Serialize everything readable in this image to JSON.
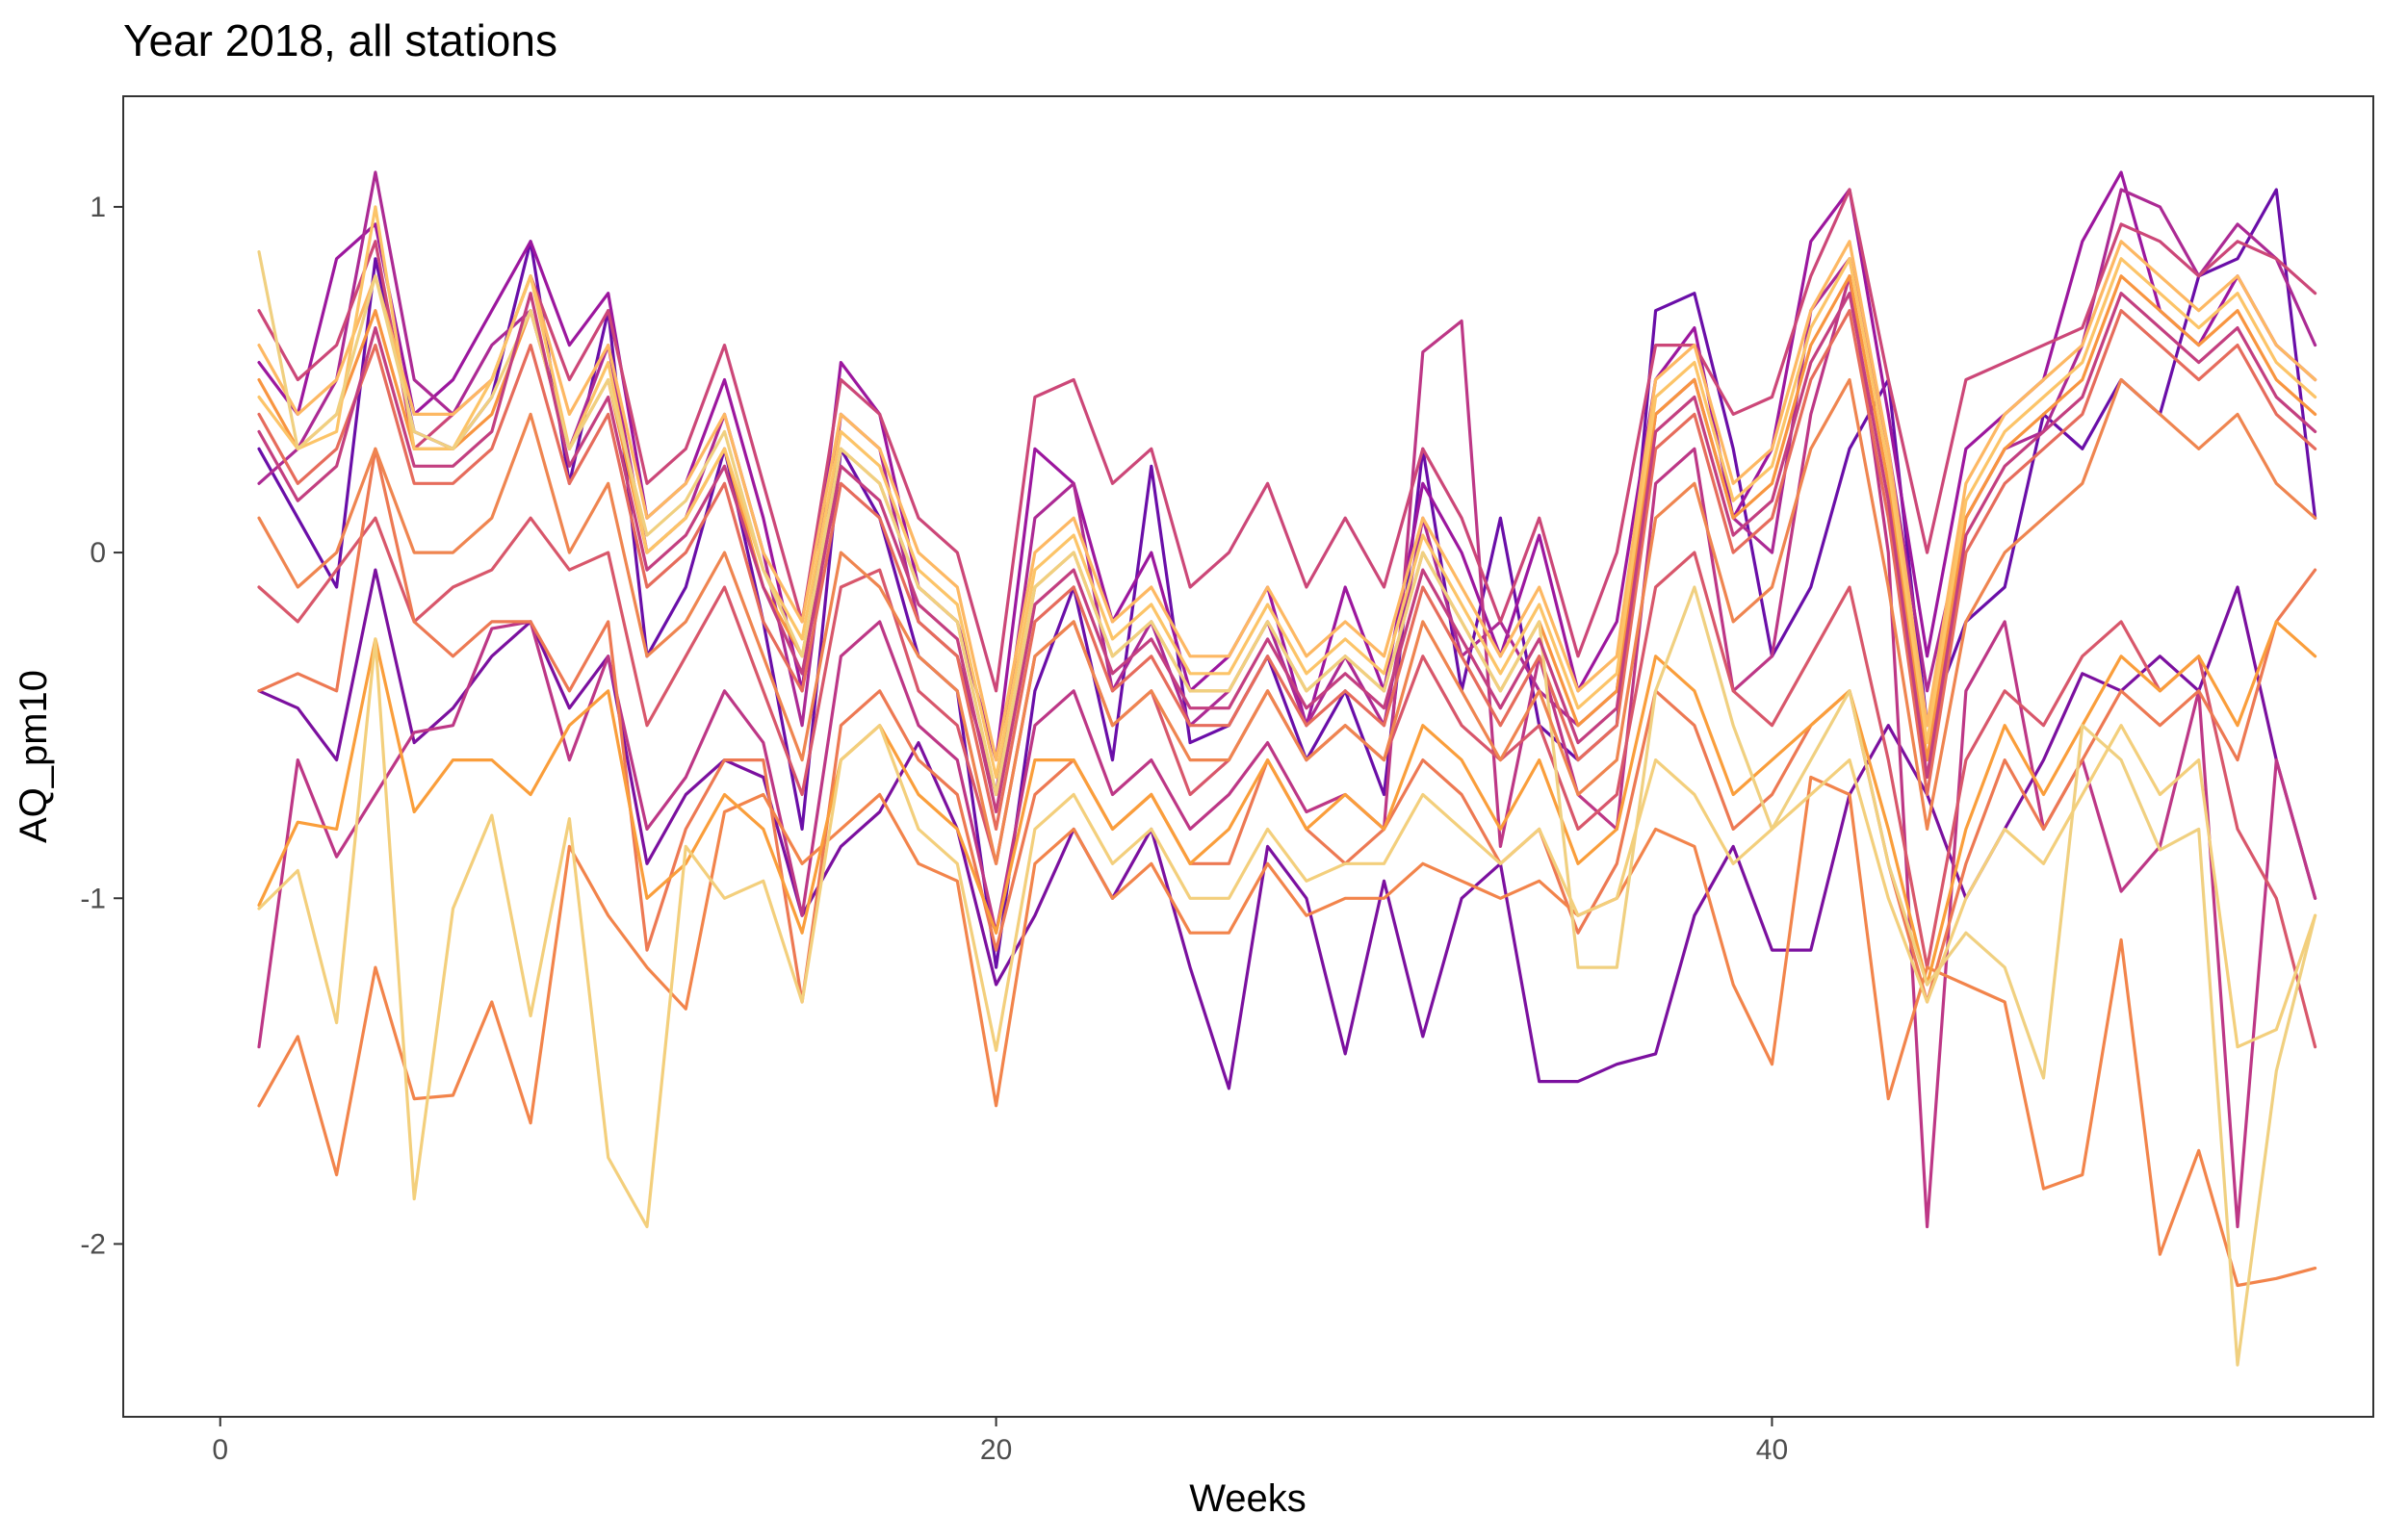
{
  "chart_data": {
    "type": "line",
    "title": "Year 2018, all stations",
    "xlabel": "Weeks",
    "ylabel": "AQ_pm10",
    "xlim": [
      -2.5,
      55.5
    ],
    "ylim": [
      -2.5,
      1.32
    ],
    "x_ticks": [
      0,
      20,
      40
    ],
    "x_tick_labels": [
      "0",
      "20",
      "40"
    ],
    "y_ticks": [
      -2,
      -1,
      0,
      1
    ],
    "y_tick_labels": [
      "-2",
      "-1",
      "0",
      "1"
    ],
    "grid": false,
    "legend": "none",
    "palette": [
      "#6a0ea8",
      "#9c179e",
      "#bd3786",
      "#d8576b",
      "#ed7953",
      "#f89540",
      "#fdb863",
      "#f7d070"
    ],
    "x": [
      1,
      2,
      3,
      4,
      5,
      6,
      7,
      8,
      9,
      10,
      11,
      12,
      13,
      14,
      15,
      16,
      17,
      18,
      19,
      20,
      21,
      22,
      23,
      24,
      25,
      26,
      27,
      28,
      29,
      30,
      31,
      32,
      33,
      34,
      35,
      36,
      37,
      38,
      39,
      40,
      41,
      42,
      43,
      44,
      45,
      46,
      47,
      48,
      49,
      50,
      51,
      52,
      53,
      54
    ],
    "series": [
      {
        "color": "#6a0ea8",
        "values": [
          0.3,
          0.1,
          -0.1,
          0.85,
          0.35,
          0.3,
          0.45,
          0.9,
          0.2,
          0.7,
          -0.3,
          -0.1,
          0.3,
          -0.2,
          -0.8,
          0.3,
          0.1,
          -0.3,
          -0.4,
          -1.2,
          -0.4,
          -0.1,
          -0.6,
          0.25,
          -0.55,
          -0.5,
          -0.3,
          -0.6,
          -0.4,
          -0.7,
          0.3,
          -0.4,
          0.1,
          -0.5,
          -0.6,
          -0.5,
          0.7,
          0.75,
          0.3,
          -0.3,
          -0.1,
          0.3,
          0.5,
          -0.5,
          -0.2,
          -0.1,
          0.4,
          0.3,
          0.5,
          0.4,
          0.8,
          0.85,
          1.05,
          0.1
        ]
      },
      {
        "color": "#7b109f",
        "values": [
          -0.4,
          -0.45,
          -0.6,
          -0.05,
          -0.55,
          -0.45,
          -0.3,
          -0.2,
          -0.45,
          -0.3,
          -0.9,
          -0.7,
          -0.6,
          -0.65,
          -1.05,
          -0.85,
          -0.75,
          -0.55,
          -0.8,
          -1.25,
          -1.05,
          -0.8,
          -1.0,
          -0.8,
          -1.2,
          -1.55,
          -0.85,
          -1.0,
          -1.45,
          -0.95,
          -1.4,
          -1.0,
          -0.9,
          -1.53,
          -1.53,
          -1.48,
          -1.45,
          -1.05,
          -0.85,
          -1.15,
          -1.15,
          -0.7,
          -0.5,
          -0.7,
          -1.0,
          -0.8,
          -0.6,
          -0.35,
          -0.4,
          -0.3,
          -0.4,
          -0.1,
          -0.6,
          -1.0
        ]
      },
      {
        "color": "#9c179e",
        "values": [
          0.55,
          0.4,
          0.85,
          0.95,
          0.4,
          0.5,
          0.7,
          0.9,
          0.6,
          0.75,
          0.1,
          0.2,
          0.5,
          0.1,
          -0.4,
          0.55,
          0.4,
          -0.1,
          -0.2,
          -0.6,
          0.3,
          0.2,
          -0.2,
          0.0,
          -0.4,
          -0.3,
          -0.1,
          -0.5,
          -0.1,
          -0.4,
          0.2,
          0.0,
          -0.3,
          0.05,
          -0.4,
          -0.2,
          0.5,
          0.65,
          0.1,
          0.3,
          0.9,
          1.05,
          0.4,
          -0.3,
          0.3,
          0.4,
          0.5,
          0.9,
          1.1,
          0.7,
          0.6,
          0.8,
          0.6,
          0.5
        ]
      },
      {
        "color": "#ac2a94",
        "values": [
          0.2,
          0.3,
          0.5,
          1.1,
          0.5,
          0.4,
          0.6,
          0.7,
          0.3,
          0.6,
          0.0,
          0.1,
          0.4,
          0.0,
          -0.5,
          0.4,
          0.3,
          -0.2,
          -0.3,
          -0.7,
          0.1,
          0.2,
          -0.4,
          -0.2,
          -0.5,
          -0.4,
          -0.2,
          -0.5,
          -0.3,
          -0.5,
          0.1,
          -0.3,
          -0.2,
          -0.4,
          -0.5,
          -0.4,
          0.4,
          0.5,
          0.1,
          0.0,
          0.7,
          0.85,
          0.3,
          -0.4,
          0.1,
          0.3,
          0.35,
          0.6,
          1.05,
          1.0,
          0.8,
          0.95,
          0.85,
          0.6
        ]
      },
      {
        "color": "#bd3786",
        "values": [
          -1.43,
          -0.6,
          -0.88,
          -0.7,
          -0.52,
          -0.5,
          -0.22,
          -0.2,
          -0.6,
          -0.3,
          -0.8,
          -0.65,
          -0.4,
          -0.55,
          -1.05,
          -0.3,
          -0.2,
          -0.5,
          -0.6,
          -1.1,
          -0.5,
          -0.4,
          -0.7,
          -0.6,
          -0.8,
          -0.7,
          -0.55,
          -0.75,
          -0.7,
          -0.8,
          0.58,
          0.67,
          -0.85,
          -0.3,
          -0.7,
          -0.8,
          0.2,
          0.3,
          -0.4,
          -0.3,
          0.4,
          0.8,
          0.0,
          -1.95,
          -0.4,
          -0.2,
          -0.8,
          -0.6,
          -0.98,
          -0.85,
          -0.4,
          -1.95,
          -0.6,
          -1.0
        ]
      },
      {
        "color": "#cc4778",
        "values": [
          0.7,
          0.5,
          0.6,
          0.9,
          0.3,
          0.4,
          0.5,
          0.8,
          0.5,
          0.7,
          0.2,
          0.3,
          0.6,
          0.2,
          -0.2,
          0.5,
          0.4,
          0.1,
          0.0,
          -0.4,
          0.45,
          0.5,
          0.2,
          0.3,
          -0.1,
          0.0,
          0.2,
          -0.1,
          0.1,
          -0.1,
          0.3,
          0.1,
          -0.2,
          0.1,
          -0.3,
          0.0,
          0.6,
          0.6,
          0.4,
          0.45,
          0.8,
          1.05,
          0.5,
          0.0,
          0.5,
          0.55,
          0.6,
          0.65,
          0.95,
          0.9,
          0.8,
          0.9,
          0.85,
          0.75
        ]
      },
      {
        "color": "#d8576b",
        "values": [
          -0.1,
          -0.2,
          -0.05,
          0.1,
          -0.2,
          -0.1,
          -0.05,
          0.1,
          -0.05,
          0.0,
          -0.5,
          -0.3,
          -0.1,
          -0.4,
          -0.7,
          -0.1,
          -0.05,
          -0.4,
          -0.5,
          -0.9,
          -0.3,
          -0.2,
          -0.5,
          -0.4,
          -0.7,
          -0.6,
          -0.4,
          -0.6,
          -0.5,
          -0.6,
          -0.3,
          -0.5,
          -0.6,
          -0.5,
          -0.8,
          -0.7,
          -0.1,
          0.0,
          -0.4,
          -0.5,
          -0.3,
          -0.1,
          -0.6,
          -1.2,
          -0.6,
          -0.4,
          -0.5,
          -0.3,
          -0.2,
          -0.4,
          -0.3,
          -0.8,
          -1.0,
          -1.43
        ]
      },
      {
        "color": "#e66c5c",
        "values": [
          0.4,
          0.2,
          0.3,
          0.6,
          0.2,
          0.2,
          0.3,
          0.6,
          0.2,
          0.4,
          -0.1,
          0.0,
          0.2,
          -0.2,
          -0.4,
          0.2,
          0.1,
          -0.2,
          -0.3,
          -0.8,
          -0.2,
          -0.1,
          -0.4,
          -0.3,
          -0.5,
          -0.5,
          -0.3,
          -0.5,
          -0.4,
          -0.5,
          -0.1,
          -0.3,
          -0.5,
          -0.3,
          -0.6,
          -0.5,
          0.3,
          0.4,
          0.0,
          0.1,
          0.5,
          0.7,
          0.1,
          -0.7,
          0.0,
          0.2,
          0.3,
          0.4,
          0.7,
          0.6,
          0.5,
          0.6,
          0.4,
          0.3
        ]
      },
      {
        "color": "#ed7953",
        "values": [
          -0.4,
          -0.35,
          -0.4,
          0.3,
          -0.2,
          -0.3,
          -0.2,
          -0.2,
          -0.4,
          -0.2,
          -1.15,
          -0.8,
          -0.6,
          -0.6,
          -1.3,
          -0.5,
          -0.4,
          -0.6,
          -0.7,
          -1.15,
          -0.7,
          -0.6,
          -0.8,
          -0.7,
          -0.9,
          -0.9,
          -0.6,
          -0.8,
          -0.9,
          -0.8,
          -0.6,
          -0.7,
          -0.9,
          -0.8,
          -1.1,
          -0.9,
          -0.4,
          -0.5,
          -0.8,
          -0.7,
          -0.5,
          -0.4,
          -0.9,
          -1.3,
          -0.9,
          -0.6,
          -0.8,
          -0.6,
          -0.4,
          -0.5,
          -0.4,
          -0.6,
          -0.2,
          -0.05
        ]
      },
      {
        "color": "#f2844b",
        "values": [
          -1.6,
          -1.4,
          -1.8,
          -1.2,
          -1.58,
          -1.57,
          -1.3,
          -1.65,
          -0.85,
          -1.05,
          -1.2,
          -1.32,
          -0.75,
          -0.7,
          -0.9,
          -0.8,
          -0.7,
          -0.9,
          -0.95,
          -1.6,
          -0.9,
          -0.8,
          -1.0,
          -0.9,
          -1.1,
          -1.1,
          -0.9,
          -1.05,
          -1.0,
          -1.0,
          -0.9,
          -0.95,
          -1.0,
          -0.95,
          -1.05,
          -1.0,
          -0.8,
          -0.85,
          -1.25,
          -1.48,
          -0.65,
          -0.7,
          -1.58,
          -1.2,
          -1.25,
          -1.3,
          -1.84,
          -1.8,
          -1.12,
          -2.03,
          -1.73,
          -2.12,
          -2.1,
          -2.07
        ]
      },
      {
        "color": "#f89540",
        "values": [
          0.5,
          0.3,
          0.4,
          0.7,
          0.3,
          0.3,
          0.4,
          0.7,
          0.3,
          0.5,
          0.0,
          0.1,
          0.3,
          -0.1,
          -0.3,
          0.3,
          0.2,
          -0.1,
          -0.2,
          -0.7,
          -0.1,
          0.0,
          -0.3,
          -0.2,
          -0.4,
          -0.4,
          -0.2,
          -0.4,
          -0.3,
          -0.4,
          0.0,
          -0.2,
          -0.4,
          -0.2,
          -0.5,
          -0.4,
          0.4,
          0.5,
          0.1,
          0.2,
          0.6,
          0.8,
          0.2,
          -0.6,
          0.1,
          0.3,
          0.4,
          0.5,
          0.8,
          0.7,
          0.6,
          0.7,
          0.5,
          0.4
        ]
      },
      {
        "color": "#fa9e3b",
        "values": [
          -1.02,
          -0.78,
          -0.8,
          -0.25,
          -0.75,
          -0.6,
          -0.6,
          -0.7,
          -0.5,
          -0.4,
          -1.0,
          -0.9,
          -0.7,
          -0.8,
          -1.1,
          -0.6,
          -0.5,
          -0.7,
          -0.8,
          -1.1,
          -0.6,
          -0.6,
          -0.8,
          -0.7,
          -0.9,
          -0.8,
          -0.6,
          -0.8,
          -0.7,
          -0.8,
          -0.5,
          -0.6,
          -0.8,
          -0.6,
          -0.9,
          -0.8,
          -0.3,
          -0.4,
          -0.7,
          -0.6,
          -0.5,
          -0.4,
          -0.8,
          -1.25,
          -0.8,
          -0.5,
          -0.7,
          -0.5,
          -0.3,
          -0.4,
          -0.3,
          -0.5,
          -0.2,
          -0.3
        ]
      },
      {
        "color": "#fdb863",
        "values": [
          0.6,
          0.4,
          0.5,
          0.8,
          0.4,
          0.4,
          0.5,
          0.8,
          0.4,
          0.6,
          0.1,
          0.2,
          0.4,
          0.0,
          -0.2,
          0.4,
          0.3,
          0.0,
          -0.1,
          -0.6,
          0.0,
          0.1,
          -0.2,
          -0.1,
          -0.3,
          -0.3,
          -0.1,
          -0.3,
          -0.2,
          -0.3,
          0.1,
          -0.1,
          -0.3,
          -0.1,
          -0.4,
          -0.3,
          0.5,
          0.6,
          0.2,
          0.3,
          0.7,
          0.9,
          0.3,
          -0.5,
          0.2,
          0.4,
          0.5,
          0.6,
          0.9,
          0.8,
          0.7,
          0.8,
          0.6,
          0.5
        ]
      },
      {
        "color": "#fcc468",
        "values": [
          0.45,
          0.3,
          0.35,
          1.0,
          0.3,
          0.3,
          0.5,
          0.8,
          0.3,
          0.55,
          0.0,
          0.1,
          0.3,
          -0.05,
          -0.25,
          0.35,
          0.25,
          -0.05,
          -0.15,
          -0.65,
          -0.05,
          0.05,
          -0.25,
          -0.15,
          -0.35,
          -0.35,
          -0.15,
          -0.35,
          -0.25,
          -0.35,
          0.05,
          -0.15,
          -0.35,
          -0.15,
          -0.45,
          -0.35,
          0.45,
          0.55,
          0.15,
          0.25,
          0.65,
          0.85,
          0.25,
          -0.55,
          0.15,
          0.35,
          0.45,
          0.55,
          0.85,
          0.75,
          0.65,
          0.75,
          0.55,
          0.45
        ]
      },
      {
        "color": "#f0d080",
        "values": [
          0.87,
          0.3,
          0.4,
          0.8,
          0.35,
          0.3,
          0.45,
          0.7,
          0.3,
          0.5,
          0.05,
          0.15,
          0.35,
          -0.05,
          -0.3,
          0.3,
          0.2,
          -0.1,
          -0.2,
          -0.7,
          -0.1,
          0.0,
          -0.3,
          -0.2,
          -0.4,
          -0.4,
          -0.2,
          -0.4,
          -0.3,
          -0.4,
          0.0,
          -0.2,
          -0.4,
          -0.2,
          -1.2,
          -1.2,
          -0.4,
          -0.1,
          -0.5,
          -0.8,
          -0.6,
          -0.4,
          -0.9,
          -1.25,
          -1.1,
          -1.2,
          -1.52,
          -0.5,
          -0.6,
          -0.86,
          -0.8,
          -2.35,
          -1.5,
          -1.05
        ]
      },
      {
        "color": "#f3cf7c",
        "values": [
          -1.03,
          -0.92,
          -1.36,
          -0.25,
          -1.87,
          -1.03,
          -0.76,
          -1.34,
          -0.77,
          -1.75,
          -1.95,
          -0.85,
          -1.0,
          -0.95,
          -1.3,
          -0.6,
          -0.5,
          -0.8,
          -0.9,
          -1.44,
          -0.8,
          -0.7,
          -0.9,
          -0.8,
          -1.0,
          -1.0,
          -0.8,
          -0.95,
          -0.9,
          -0.9,
          -0.7,
          -0.8,
          -0.9,
          -0.8,
          -1.05,
          -1.0,
          -0.6,
          -0.7,
          -0.9,
          -0.8,
          -0.7,
          -0.6,
          -1.0,
          -1.3,
          -1.0,
          -0.8,
          -0.9,
          -0.7,
          -0.5,
          -0.7,
          -0.6,
          -1.43,
          -1.38,
          -1.05
        ]
      },
      {
        "color": "#ef8550",
        "values": [
          0.1,
          -0.1,
          0.0,
          0.3,
          0.0,
          0.0,
          0.1,
          0.4,
          0.0,
          0.2,
          -0.3,
          -0.2,
          0.0,
          -0.3,
          -0.6,
          0.0,
          -0.1,
          -0.3,
          -0.4,
          -0.9,
          -0.3,
          -0.2,
          -0.5,
          -0.4,
          -0.6,
          -0.6,
          -0.4,
          -0.6,
          -0.5,
          -0.6,
          -0.2,
          -0.4,
          -0.6,
          -0.4,
          -0.7,
          -0.6,
          0.1,
          0.2,
          -0.2,
          -0.1,
          0.3,
          0.5,
          -0.1,
          -0.8,
          -0.2,
          0.0,
          0.1,
          0.2,
          0.5,
          0.4,
          0.3,
          0.4,
          0.2,
          0.1
        ]
      },
      {
        "color": "#c33f80",
        "values": [
          0.35,
          0.15,
          0.25,
          0.65,
          0.25,
          0.25,
          0.35,
          0.75,
          0.25,
          0.45,
          -0.05,
          0.05,
          0.25,
          -0.1,
          -0.35,
          0.25,
          0.15,
          -0.15,
          -0.25,
          -0.75,
          -0.15,
          -0.05,
          -0.35,
          -0.25,
          -0.45,
          -0.45,
          -0.25,
          -0.45,
          -0.35,
          -0.45,
          -0.05,
          -0.25,
          -0.45,
          -0.25,
          -0.55,
          -0.45,
          0.35,
          0.45,
          0.05,
          0.15,
          0.55,
          0.75,
          0.15,
          -0.65,
          0.05,
          0.25,
          0.35,
          0.45,
          0.75,
          0.65,
          0.55,
          0.65,
          0.45,
          0.35
        ]
      }
    ]
  }
}
